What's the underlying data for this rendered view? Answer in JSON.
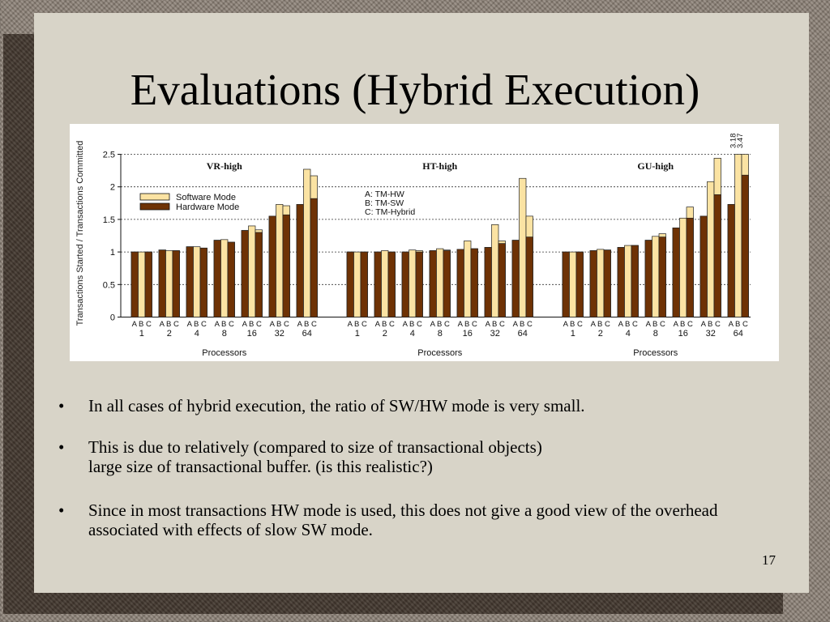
{
  "slide": {
    "title": "Evaluations (Hybrid Execution)",
    "page_number": "17",
    "bullets": [
      "In all cases of hybrid execution, the ratio of SW/HW mode is very small.",
      "This is due to relatively (compared to size of transactional objects)\nlarge size of transactional buffer. (is this realistic?)",
      "Since in most transactions HW mode is used, this does not give a good view of the overhead associated with effects of slow SW mode."
    ]
  },
  "chart_data": {
    "type": "bar",
    "ylabel": "Transactions Started / Transactions Committed",
    "xlabel": "Processors",
    "ylim": [
      0,
      2.5
    ],
    "yticks": [
      "0",
      "0.5",
      "1",
      "1.5",
      "2",
      "2.5"
    ],
    "grid": "horizontal dashed",
    "categories": [
      "1",
      "2",
      "4",
      "8",
      "16",
      "32",
      "64"
    ],
    "bar_labels": [
      "A",
      "B",
      "C"
    ],
    "config_legend": [
      "A: TM-HW",
      "B: TM-SW",
      "C: TM-Hybrid"
    ],
    "mode_legend": [
      {
        "name": "Software Mode",
        "color": "#fbe3a3"
      },
      {
        "name": "Hardware Mode",
        "color": "#6e3205"
      }
    ],
    "panels": [
      {
        "title": "VR-high",
        "hw": [
          [
            1,
            0,
            1
          ],
          [
            1.03,
            0,
            1.02
          ],
          [
            1.08,
            0,
            1.06
          ],
          [
            1.18,
            0,
            1.15
          ],
          [
            1.33,
            0,
            1.3
          ],
          [
            1.55,
            0,
            1.57
          ],
          [
            1.73,
            0,
            1.82
          ]
        ],
        "total": [
          [
            1,
            1,
            1
          ],
          [
            1.03,
            1.02,
            1.02
          ],
          [
            1.08,
            1.08,
            1.06
          ],
          [
            1.18,
            1.19,
            1.15
          ],
          [
            1.33,
            1.4,
            1.34
          ],
          [
            1.55,
            1.73,
            1.71
          ],
          [
            1.73,
            2.27,
            2.17
          ]
        ],
        "notes": [
          "",
          "",
          "",
          "",
          "",
          "",
          ""
        ]
      },
      {
        "title": "HT-high",
        "hw": [
          [
            1,
            0,
            1
          ],
          [
            1,
            0,
            1
          ],
          [
            1,
            0,
            1
          ],
          [
            1.02,
            0,
            1.02
          ],
          [
            1.04,
            0,
            1.05
          ],
          [
            1.07,
            0,
            1.13
          ],
          [
            1.18,
            0,
            1.23
          ]
        ],
        "total": [
          [
            1,
            1,
            1
          ],
          [
            1,
            1.02,
            1
          ],
          [
            1,
            1.03,
            1.02
          ],
          [
            1.02,
            1.05,
            1.03
          ],
          [
            1.04,
            1.17,
            1.05
          ],
          [
            1.07,
            1.42,
            1.17
          ],
          [
            1.18,
            2.13,
            1.55
          ]
        ],
        "notes": [
          "",
          "",
          "",
          "",
          "",
          "",
          ""
        ]
      },
      {
        "title": "GU-high",
        "hw": [
          [
            1,
            0,
            1
          ],
          [
            1.02,
            0,
            1.03
          ],
          [
            1.07,
            0,
            1.1
          ],
          [
            1.18,
            0,
            1.23
          ],
          [
            1.37,
            0,
            1.52
          ],
          [
            1.55,
            0,
            1.88
          ],
          [
            1.73,
            0,
            2.18
          ]
        ],
        "total": [
          [
            1,
            1,
            1
          ],
          [
            1.02,
            1.04,
            1.03
          ],
          [
            1.07,
            1.1,
            1.1
          ],
          [
            1.18,
            1.24,
            1.28
          ],
          [
            1.37,
            1.52,
            1.69
          ],
          [
            1.55,
            2.08,
            2.44
          ],
          [
            1.73,
            3.18,
            3.47
          ]
        ],
        "notes": [
          "",
          "",
          "",
          "",
          "",
          "",
          "3.18\n3.47"
        ]
      }
    ]
  }
}
